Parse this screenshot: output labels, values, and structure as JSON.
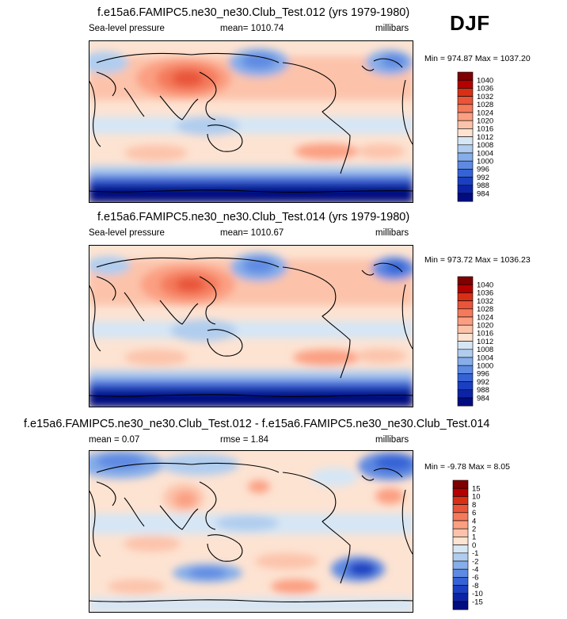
{
  "season": "DJF",
  "panels": [
    {
      "id": "top",
      "title": "f.e15a6.FAMIPC5.ne30_ne30.Club_Test.012 (yrs 1979-1980)",
      "left_label": "Sea-level pressure",
      "center_label": "mean= 1010.74",
      "right_label": "millibars",
      "minmax": "Min = 974.87 Max = 1037.20"
    },
    {
      "id": "middle",
      "title": "f.e15a6.FAMIPC5.ne30_ne30.Club_Test.014 (yrs 1979-1980)",
      "left_label": "Sea-level pressure",
      "center_label": "mean= 1010.67",
      "right_label": "millibars",
      "minmax": "Min = 973.72 Max = 1036.23"
    },
    {
      "id": "bottom",
      "title": "f.e15a6.FAMIPC5.ne30_ne30.Club_Test.012 - f.e15a6.FAMIPC5.ne30_ne30.Club_Test.014",
      "left_label": "mean =   0.07",
      "center_label": "rmse =    1.84",
      "right_label": "millibars",
      "minmax": "Min =  -9.78 Max =   8.05"
    }
  ],
  "chart_data": [
    {
      "type": "heatmap",
      "title": "f.e15a6.FAMIPC5.ne30_ne30.Club_Test.012 (yrs 1979-1980)",
      "variable": "Sea-level pressure",
      "units": "millibars",
      "mean": 1010.74,
      "min": 974.87,
      "max": 1037.2,
      "colorbar_levels": [
        1040,
        1036,
        1032,
        1028,
        1024,
        1020,
        1016,
        1012,
        1008,
        1004,
        1000,
        996,
        992,
        988,
        984
      ],
      "colorbar_colors": [
        "#7f0000",
        "#b30000",
        "#d73016",
        "#e8553a",
        "#f47a5c",
        "#fb9f82",
        "#fcc3aa",
        "#fde3d2",
        "#d6e6f5",
        "#b0cdef",
        "#86aeea",
        "#5e8ae2",
        "#3563d6",
        "#1b3fc1",
        "#0d23a6",
        "#000c80"
      ]
    },
    {
      "type": "heatmap",
      "title": "f.e15a6.FAMIPC5.ne30_ne30.Club_Test.014 (yrs 1979-1980)",
      "variable": "Sea-level pressure",
      "units": "millibars",
      "mean": 1010.67,
      "min": 973.72,
      "max": 1036.23,
      "colorbar_levels": [
        1040,
        1036,
        1032,
        1028,
        1024,
        1020,
        1016,
        1012,
        1008,
        1004,
        1000,
        996,
        992,
        988,
        984
      ],
      "colorbar_colors": [
        "#7f0000",
        "#b30000",
        "#d73016",
        "#e8553a",
        "#f47a5c",
        "#fb9f82",
        "#fcc3aa",
        "#fde3d2",
        "#d6e6f5",
        "#b0cdef",
        "#86aeea",
        "#5e8ae2",
        "#3563d6",
        "#1b3fc1",
        "#0d23a6",
        "#000c80"
      ]
    },
    {
      "type": "heatmap",
      "title": "f.e15a6.FAMIPC5.ne30_ne30.Club_Test.012 - f.e15a6.FAMIPC5.ne30_ne30.Club_Test.014",
      "units": "millibars",
      "mean": 0.07,
      "rmse": 1.84,
      "min": -9.78,
      "max": 8.05,
      "colorbar_levels": [
        15,
        10,
        8,
        6,
        4,
        2,
        1,
        0,
        -1,
        -2,
        -4,
        -6,
        -8,
        -10,
        -15
      ],
      "colorbar_colors": [
        "#7f0000",
        "#b30000",
        "#d73016",
        "#e8553a",
        "#f47a5c",
        "#fb9f82",
        "#fcc3aa",
        "#fde3d2",
        "#d6e6f5",
        "#b0cdef",
        "#86aeea",
        "#5e8ae2",
        "#3563d6",
        "#1b3fc1",
        "#0d23a6",
        "#000c80"
      ]
    }
  ]
}
